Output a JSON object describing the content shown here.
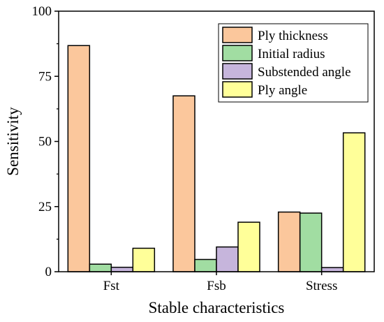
{
  "chart_data": {
    "type": "bar",
    "title": "",
    "xlabel": "Stable characteristics",
    "ylabel": "Sensitivity",
    "categories": [
      "Fst",
      "Fsb",
      "Stress"
    ],
    "ylim": [
      0,
      100
    ],
    "yticks": [
      0,
      25,
      50,
      75,
      100
    ],
    "grid": false,
    "legend": "top-right",
    "series": [
      {
        "name": "Ply thickness",
        "color": "#FBC79C",
        "values": [
          86.8,
          67.5,
          22.9
        ]
      },
      {
        "name": "Initial radius",
        "color": "#A1DDA2",
        "values": [
          2.9,
          4.7,
          22.5
        ]
      },
      {
        "name": "Substended angle",
        "color": "#C6B5DC",
        "values": [
          1.7,
          9.5,
          1.6
        ]
      },
      {
        "name": "Ply angle",
        "color": "#FFFF99",
        "values": [
          9.0,
          19.0,
          53.3
        ]
      }
    ]
  }
}
